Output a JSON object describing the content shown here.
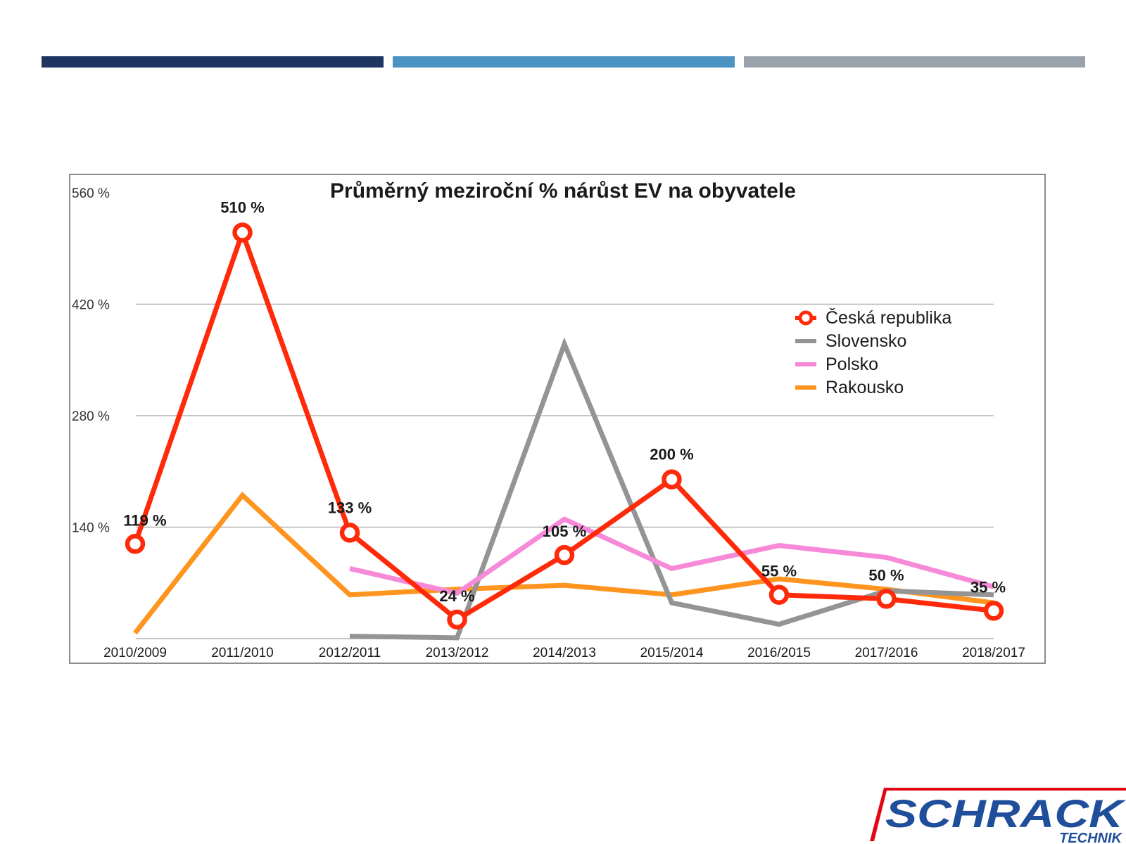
{
  "slide": {
    "bar_colors": [
      "#1e3461",
      "#4b93c2",
      "#9aa3ab"
    ]
  },
  "logo": {
    "text_main": "SCHRACK",
    "text_sub": "TECHNIK",
    "color_red": "#e30613",
    "color_blue": "#1f4e9a"
  },
  "chart_data": {
    "type": "line",
    "title": "Průměrný meziroční % nárůst EV na obyvatele",
    "xlabel": "",
    "ylabel": "",
    "categories": [
      "2010/2009",
      "2011/2010",
      "2012/2011",
      "2013/2012",
      "2014/2013",
      "2015/2014",
      "2016/2015",
      "2017/2016",
      "2018/2017"
    ],
    "ylim": [
      0,
      560
    ],
    "yticks": [
      140,
      280,
      420,
      560
    ],
    "ytick_labels": [
      "140 %",
      "280 %",
      "420 %",
      "560 %"
    ],
    "grid": true,
    "legend_position": "top-right",
    "series": [
      {
        "name": "Česká republika",
        "color": "#ff2a0a",
        "marker": "circle",
        "values": [
          119,
          510,
          133,
          24,
          105,
          200,
          55,
          50,
          35
        ],
        "labels": [
          "119 %",
          "510 %",
          "133 %",
          "24 %",
          "105 %",
          "200 %",
          "55 %",
          "50 %",
          "35 %"
        ]
      },
      {
        "name": "Slovensko",
        "color": "#949494",
        "values": [
          null,
          null,
          3,
          1,
          370,
          45,
          18,
          60,
          55
        ]
      },
      {
        "name": "Polsko",
        "color": "#f78ad8",
        "values": [
          null,
          null,
          88,
          57,
          150,
          88,
          117,
          102,
          65
        ]
      },
      {
        "name": "Rakousko",
        "color": "#ff941f",
        "values": [
          7,
          180,
          55,
          62,
          67,
          55,
          75,
          62,
          45
        ]
      }
    ]
  }
}
